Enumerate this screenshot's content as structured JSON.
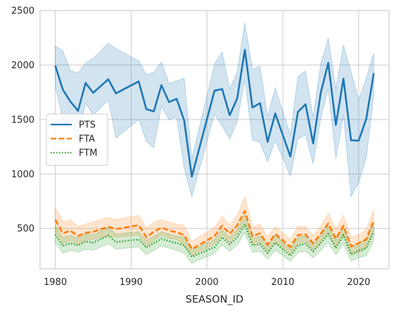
{
  "chart_data": {
    "type": "line",
    "title": "",
    "xlabel": "SEASON_ID",
    "ylabel": "",
    "xlim": [
      1978,
      2024
    ],
    "ylim": [
      130,
      2500
    ],
    "x_ticks": [
      1980,
      1990,
      2000,
      2010,
      2020
    ],
    "y_ticks": [
      500,
      1000,
      1500,
      2000,
      2500
    ],
    "grid": true,
    "legend": {
      "placement": "center-left",
      "entries": [
        "PTS",
        "FTA",
        "FTM"
      ]
    },
    "colors": {
      "PTS": "#1f77b4",
      "FTA": "#ff7f0e",
      "FTM": "#2ca02c"
    },
    "x": [
      1980,
      1981,
      1982,
      1983,
      1984,
      1985,
      1987,
      1988,
      1991,
      1992,
      1993,
      1994,
      1995,
      1996,
      1997,
      1998,
      2001,
      2002,
      2003,
      2004,
      2005,
      2006,
      2007,
      2008,
      2009,
      2011,
      2012,
      2013,
      2014,
      2015,
      2016,
      2017,
      2018,
      2019,
      2020,
      2021,
      2022
    ],
    "series": [
      {
        "name": "PTS",
        "style": "solid",
        "values": [
          1995,
          1775,
          1665,
          1580,
          1835,
          1745,
          1870,
          1740,
          1850,
          1595,
          1575,
          1815,
          1660,
          1690,
          1490,
          975,
          1765,
          1780,
          1540,
          1695,
          2140,
          1610,
          1650,
          1295,
          1555,
          1160,
          1570,
          1640,
          1280,
          1745,
          2020,
          1450,
          1875,
          1310,
          1305,
          1505,
          1925
        ],
        "ci_low": [
          1800,
          1500,
          1480,
          1320,
          1650,
          1540,
          1680,
          1330,
          1500,
          1300,
          1240,
          1620,
          1500,
          1520,
          1050,
          790,
          1550,
          1440,
          1320,
          1480,
          1870,
          1310,
          1290,
          1110,
          1310,
          980,
          1320,
          1360,
          1090,
          1510,
          1780,
          1140,
          1540,
          790,
          920,
          1150,
          1720
        ],
        "ci_high": [
          2175,
          2130,
          1950,
          1925,
          2020,
          2060,
          2200,
          2150,
          2040,
          1910,
          1935,
          2030,
          1830,
          1855,
          1880,
          1140,
          2010,
          2120,
          1780,
          1940,
          2390,
          1960,
          1990,
          1530,
          1790,
          1360,
          1895,
          1945,
          1520,
          2010,
          2250,
          1780,
          2185,
          1940,
          1680,
          1880,
          2110
        ]
      },
      {
        "name": "FTA",
        "style": "dashed",
        "values": [
          580,
          455,
          480,
          430,
          460,
          470,
          515,
          495,
          530,
          420,
          470,
          510,
          480,
          465,
          440,
          310,
          430,
          525,
          450,
          530,
          660,
          430,
          455,
          350,
          450,
          330,
          440,
          445,
          365,
          450,
          545,
          405,
          525,
          335,
          365,
          400,
          575
        ],
        "ci_low": [
          480,
          360,
          390,
          350,
          390,
          400,
          430,
          420,
          440,
          340,
          390,
          440,
          410,
          400,
          350,
          250,
          360,
          440,
          370,
          450,
          570,
          360,
          370,
          290,
          370,
          270,
          360,
          380,
          300,
          380,
          470,
          330,
          440,
          270,
          280,
          320,
          480
        ],
        "ci_high": [
          690,
          560,
          580,
          520,
          540,
          560,
          600,
          580,
          620,
          500,
          560,
          580,
          560,
          540,
          530,
          380,
          510,
          610,
          530,
          620,
          790,
          510,
          540,
          420,
          520,
          400,
          520,
          520,
          430,
          520,
          640,
          490,
          620,
          420,
          440,
          490,
          670
        ]
      },
      {
        "name": "FTM",
        "style": "dotted",
        "values": [
          445,
          340,
          365,
          345,
          380,
          370,
          435,
          375,
          400,
          325,
          365,
          405,
          385,
          365,
          345,
          240,
          330,
          420,
          355,
          420,
          540,
          345,
          355,
          275,
          370,
          250,
          345,
          360,
          290,
          365,
          450,
          320,
          440,
          260,
          295,
          320,
          470
        ],
        "ci_low": [
          370,
          270,
          300,
          280,
          310,
          300,
          360,
          310,
          330,
          260,
          300,
          340,
          320,
          300,
          270,
          180,
          270,
          350,
          290,
          350,
          460,
          280,
          290,
          220,
          300,
          200,
          280,
          290,
          230,
          300,
          370,
          260,
          360,
          200,
          230,
          250,
          390
        ],
        "ci_high": [
          530,
          420,
          440,
          410,
          450,
          440,
          510,
          450,
          470,
          390,
          430,
          470,
          450,
          430,
          420,
          300,
          400,
          490,
          420,
          490,
          630,
          410,
          430,
          340,
          440,
          310,
          420,
          430,
          350,
          430,
          530,
          390,
          520,
          330,
          370,
          400,
          550
        ]
      }
    ]
  }
}
